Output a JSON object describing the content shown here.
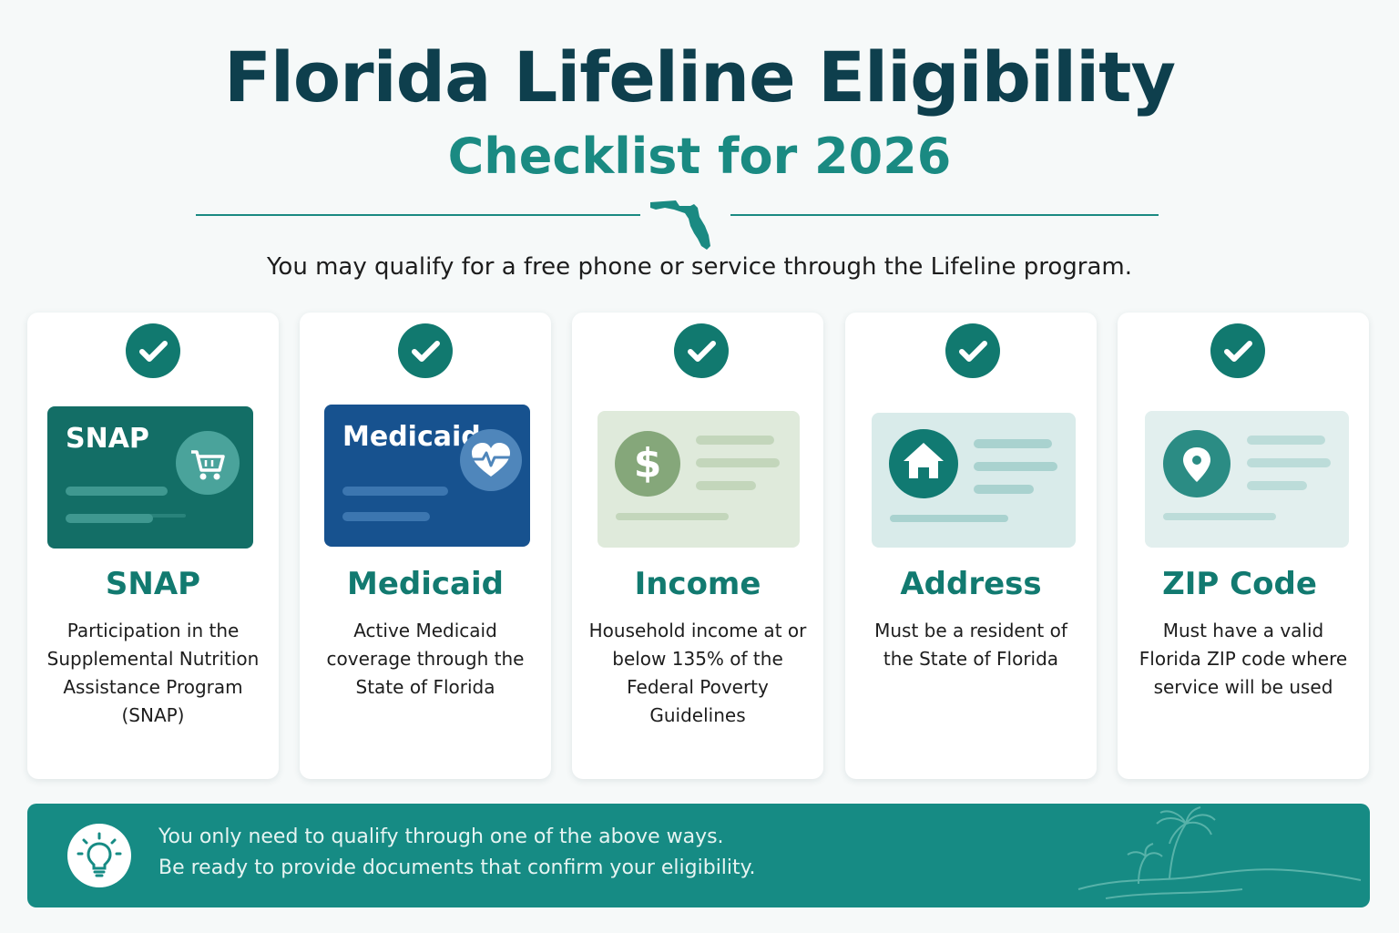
{
  "header": {
    "title": "Florida Lifeline Eligibility",
    "subtitle": "Checklist for 2026",
    "intro": "You may qualify for a free phone or service through the Lifeline program."
  },
  "colors": {
    "title": "#0e3f4d",
    "accent": "#1a8a82",
    "check": "#11796f",
    "snap_card": "#136e66",
    "medicaid_card": "#17528f",
    "income_card": "#dfeadb",
    "address_card": "#d9ebea",
    "zip_card": "#e2efee",
    "banner": "#168b84"
  },
  "cards": [
    {
      "illustration_label": "SNAP",
      "icon": "shopping-cart-icon",
      "title": "SNAP",
      "description": "Participation in the Supplemental Nutrition Assistance Program (SNAP)"
    },
    {
      "illustration_label": "Medicaid",
      "icon": "heart-pulse-icon",
      "title": "Medicaid",
      "description": "Active Medicaid coverage through the State of Florida"
    },
    {
      "icon": "dollar-icon",
      "icon_glyph": "$",
      "title": "Income",
      "description": "Household income at or below 135% of the Federal Poverty Guidelines"
    },
    {
      "icon": "house-icon",
      "title": "Address",
      "description": "Must be a resident of the State of Florida"
    },
    {
      "icon": "location-pin-icon",
      "title": "ZIP Code",
      "description": "Must have a valid Florida ZIP code where service will be used"
    }
  ],
  "banner": {
    "icon": "lightbulb-icon",
    "line1": "You only need to qualify through one of the above ways.",
    "line2": "Be ready to provide documents that confirm your eligibility."
  }
}
